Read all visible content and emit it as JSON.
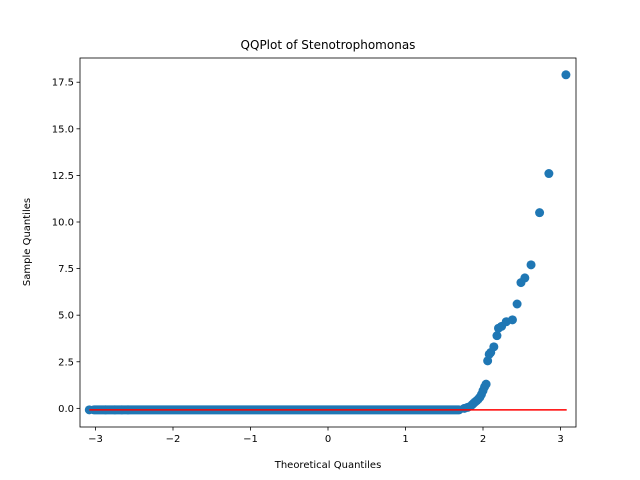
{
  "chart_data": {
    "type": "scatter",
    "title": "QQPlot of Stenotrophomonas",
    "xlabel": "Theoretical Quantiles",
    "ylabel": "Sample Quantiles",
    "xlim": [
      -3.2,
      3.2
    ],
    "ylim": [
      -1.0,
      18.8
    ],
    "xticks": [
      -3,
      -2,
      -1,
      0,
      1,
      2,
      3
    ],
    "xtick_labels": [
      "−3",
      "−2",
      "−1",
      "0",
      "1",
      "2",
      "3"
    ],
    "yticks": [
      0,
      2.5,
      5,
      7.5,
      10,
      12.5,
      15,
      17.5
    ],
    "ytick_labels": [
      "0.0",
      "2.5",
      "5.0",
      "7.5",
      "10.0",
      "12.5",
      "15.0",
      "17.5"
    ],
    "grid": false,
    "legend": "none",
    "reference_line": {
      "slope": 0.0,
      "intercept": -0.08,
      "x_range": [
        -3.08,
        3.08
      ]
    },
    "dense_region": {
      "x_from": -3.08,
      "x_to": 1.75,
      "y": -0.08
    },
    "series": [
      {
        "x": [
          -3.08,
          -2.87,
          -2.75,
          -2.66,
          -2.58,
          1.76,
          1.8,
          1.84,
          1.86,
          1.88,
          1.9,
          1.92,
          1.94,
          1.96,
          1.98,
          2.0,
          2.02,
          2.04,
          2.06,
          2.08,
          2.1,
          2.14,
          2.18,
          2.2,
          2.24,
          2.3,
          2.38,
          2.44,
          2.49,
          2.54,
          2.62,
          2.73,
          2.85,
          3.07
        ],
        "y": [
          -0.08,
          -0.08,
          -0.08,
          -0.08,
          -0.08,
          0.0,
          0.05,
          0.12,
          0.2,
          0.28,
          0.35,
          0.42,
          0.5,
          0.6,
          0.75,
          0.95,
          1.15,
          1.3,
          2.55,
          2.9,
          3.0,
          3.3,
          3.9,
          4.3,
          4.4,
          4.65,
          4.75,
          5.6,
          6.75,
          7.0,
          7.7,
          10.5,
          12.6,
          17.9
        ]
      }
    ]
  }
}
